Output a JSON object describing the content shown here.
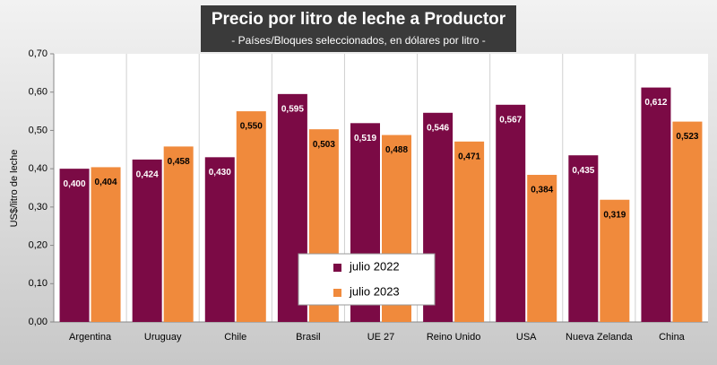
{
  "chart_data": {
    "type": "bar",
    "title": "Precio por litro de leche a Productor",
    "subtitle": "- Países/Bloques seleccionados, en dólares por litro -",
    "y_label": "US$/litro de leche",
    "categories": [
      "Argentina",
      "Uruguay",
      "Chile",
      "Brasil",
      "UE 27",
      "Reino Unido",
      "USA",
      "Nueva Zelanda",
      "China"
    ],
    "series": [
      {
        "name": "julio 2022",
        "color": "#7b0a45",
        "values": [
          0.4,
          0.424,
          0.43,
          0.595,
          0.519,
          0.546,
          0.567,
          0.435,
          0.612
        ],
        "value_labels": [
          "0,400",
          "0,424",
          "0,430",
          "0,595",
          "0,519",
          "0,546",
          "0,567",
          "0,435",
          "0,612"
        ]
      },
      {
        "name": "julio 2023",
        "color": "#f08a3c",
        "values": [
          0.404,
          0.458,
          0.55,
          0.503,
          0.488,
          0.471,
          0.384,
          0.319,
          0.523
        ],
        "value_labels": [
          "0,404",
          "0,458",
          "0,550",
          "0,503",
          "0,488",
          "0,471",
          "0,384",
          "0,319",
          "0,523"
        ]
      }
    ],
    "ylim": [
      0,
      0.7
    ],
    "yticks": [
      {
        "value": 0,
        "label": "0,00"
      },
      {
        "value": 0.1,
        "label": "0,10"
      },
      {
        "value": 0.2,
        "label": "0,20"
      },
      {
        "value": 0.3,
        "label": "0,30"
      },
      {
        "value": 0.4,
        "label": "0,40"
      },
      {
        "value": 0.5,
        "label": "0,50"
      },
      {
        "value": 0.6,
        "label": "0,60"
      },
      {
        "value": 0.7,
        "label": "0,70"
      }
    ]
  }
}
